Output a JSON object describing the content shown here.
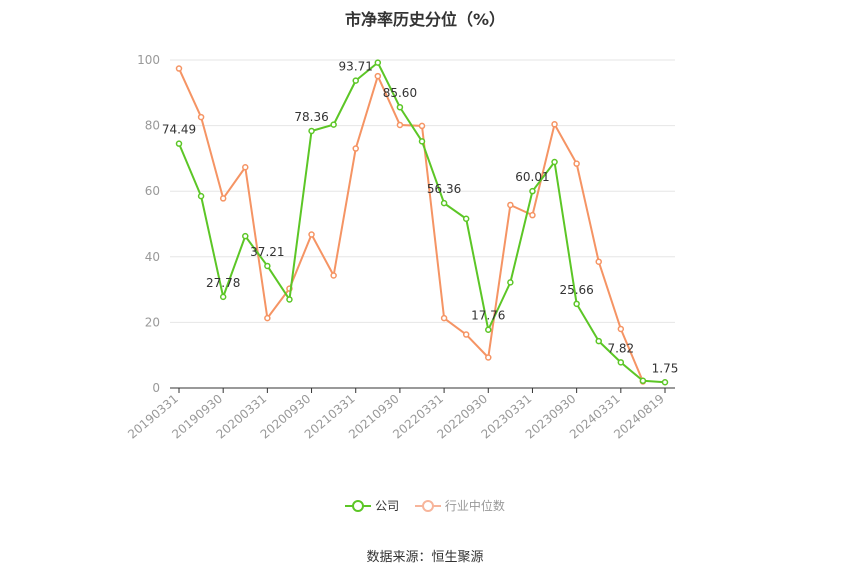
{
  "chart_data": {
    "type": "line",
    "title": "市净率历史分位（%）",
    "xlabel": "",
    "ylabel": "",
    "ylim": [
      0,
      100
    ],
    "yticks": [
      0,
      20,
      40,
      60,
      80,
      100
    ],
    "x": [
      "20190331",
      "20190630",
      "20190930",
      "20191231",
      "20200331",
      "20200630",
      "20200930",
      "20201231",
      "20210331",
      "20210630",
      "20210930",
      "20211231",
      "20220331",
      "20220630",
      "20220930",
      "20221231",
      "20230331",
      "20230630",
      "20230930",
      "20231231",
      "20240331",
      "20240630",
      "20240819"
    ],
    "x_tick_labels": [
      "20190331",
      "20190930",
      "20200331",
      "20200930",
      "20210331",
      "20210930",
      "20220331",
      "20220930",
      "20230331",
      "20230930",
      "20240331",
      "20240819"
    ],
    "grid": true,
    "legend_position": "bottom-center",
    "series": [
      {
        "name": "公司",
        "color": "#5cc626",
        "values": [
          74.49,
          58.5,
          27.78,
          46.3,
          37.21,
          27.0,
          78.36,
          80.3,
          93.71,
          99.2,
          85.6,
          75.2,
          56.36,
          51.6,
          17.76,
          32.2,
          60.01,
          68.9,
          25.66,
          14.3,
          7.82,
          2.2,
          1.75
        ],
        "labels": {
          "0": "74.49",
          "2": "27.78",
          "4": "37.21",
          "6": "78.36",
          "8": "93.71",
          "10": "85.60",
          "12": "56.36",
          "14": "17.76",
          "16": "60.01",
          "18": "25.66",
          "20": "7.82",
          "22": "1.75"
        }
      },
      {
        "name": "行业中位数",
        "color": "#f59464",
        "values": [
          97.4,
          82.6,
          57.8,
          67.3,
          21.3,
          30.3,
          46.8,
          34.3,
          73.0,
          95.1,
          80.2,
          79.9,
          21.3,
          16.3,
          9.3,
          55.8,
          52.7,
          80.4,
          68.4,
          38.5,
          18.0,
          2.0,
          null
        ]
      }
    ]
  },
  "legend": {
    "company": "公司",
    "industry": "行业中位数"
  },
  "footer": {
    "source": "数据来源：恒生聚源"
  },
  "colors": {
    "company": "#5cc626",
    "industry": "#f59464",
    "axis": "#333333",
    "grid": "#e6e6e6",
    "tick_text": "#999999"
  }
}
